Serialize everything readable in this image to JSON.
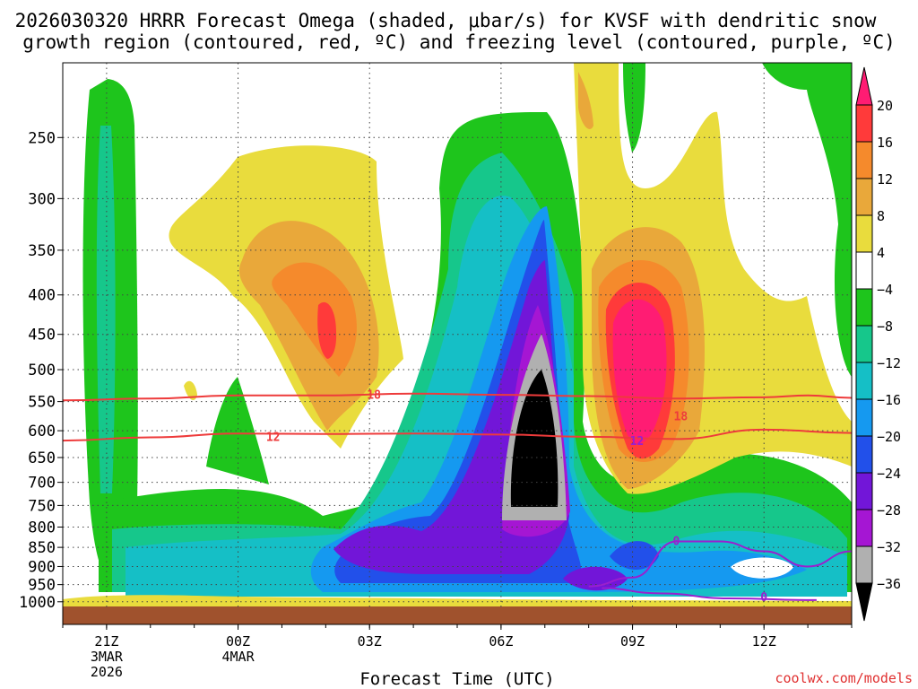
{
  "chart_data": {
    "type": "heatmap",
    "title_line1": "2026030320 HRRR Forecast Omega (shaded, μbar/s) for KVSF with dendritic snow",
    "title_line2": "growth region (contoured, red, ºC) and freezing level (contoured, purple, ºC)",
    "xlabel": "Forecast Time (UTC)",
    "ylabel": "",
    "credit": "coolwx.com/models",
    "x_ticks": [
      {
        "label": "21Z",
        "sub1": "3MAR",
        "sub2": "2026",
        "hour": 0
      },
      {
        "label": "00Z",
        "sub1": "4MAR",
        "sub2": "",
        "hour": 3
      },
      {
        "label": "03Z",
        "sub1": "",
        "sub2": "",
        "hour": 6
      },
      {
        "label": "06Z",
        "sub1": "",
        "sub2": "",
        "hour": 9
      },
      {
        "label": "09Z",
        "sub1": "",
        "sub2": "",
        "hour": 12
      },
      {
        "label": "12Z",
        "sub1": "",
        "sub2": "",
        "hour": 15
      }
    ],
    "x_range_hours": [
      -1,
      17
    ],
    "y_ticks": [
      "250",
      "300",
      "350",
      "400",
      "450",
      "500",
      "550",
      "600",
      "650",
      "700",
      "750",
      "800",
      "850",
      "900",
      "950",
      "1000"
    ],
    "y_range_mb": [
      200,
      1025
    ],
    "colorbar": {
      "labels": [
        "20",
        "16",
        "12",
        "8",
        "4",
        "−4",
        "−8",
        "−12",
        "−16",
        "−20",
        "−24",
        "−28",
        "−32",
        "−36"
      ],
      "colors": [
        "#ff1c73",
        "#ff3a3a",
        "#f58a2c",
        "#e9a83a",
        "#e9dc3d",
        "#ffffff",
        "#1ec51c",
        "#16c78b",
        "#15bfc6",
        "#1599f0",
        "#2250ea",
        "#7216d8",
        "#a516d3",
        "#b0b0b0",
        "#000000"
      ]
    },
    "contour_labels": {
      "dgz_upper": "18",
      "dgz_lower": "12",
      "freezing": "0"
    },
    "colors": {
      "dgz": "#ee3b3b",
      "freezing": "#9a1fcf",
      "ground": "#a0522d"
    },
    "series": [
      {
        "name": "DGZ -18C level (mb)",
        "hour": [
          -1,
          1,
          3,
          5,
          7,
          9,
          11,
          13,
          15,
          16,
          17
        ],
        "values": [
          548,
          545,
          540,
          540,
          537,
          539,
          541,
          545,
          543,
          540,
          544
        ]
      },
      {
        "name": "DGZ -12C level (mb)",
        "hour": [
          -1,
          1,
          3,
          5,
          7,
          9,
          11,
          13,
          15,
          17
        ],
        "values": [
          618,
          612,
          605,
          606,
          605,
          607,
          611,
          615,
          598,
          604
        ]
      },
      {
        "name": "Freezing level 0C (mb)",
        "hour": [
          11,
          12,
          13,
          14,
          15,
          16,
          17
        ],
        "values": [
          955,
          930,
          835,
          835,
          860,
          900,
          860
        ]
      }
    ]
  }
}
